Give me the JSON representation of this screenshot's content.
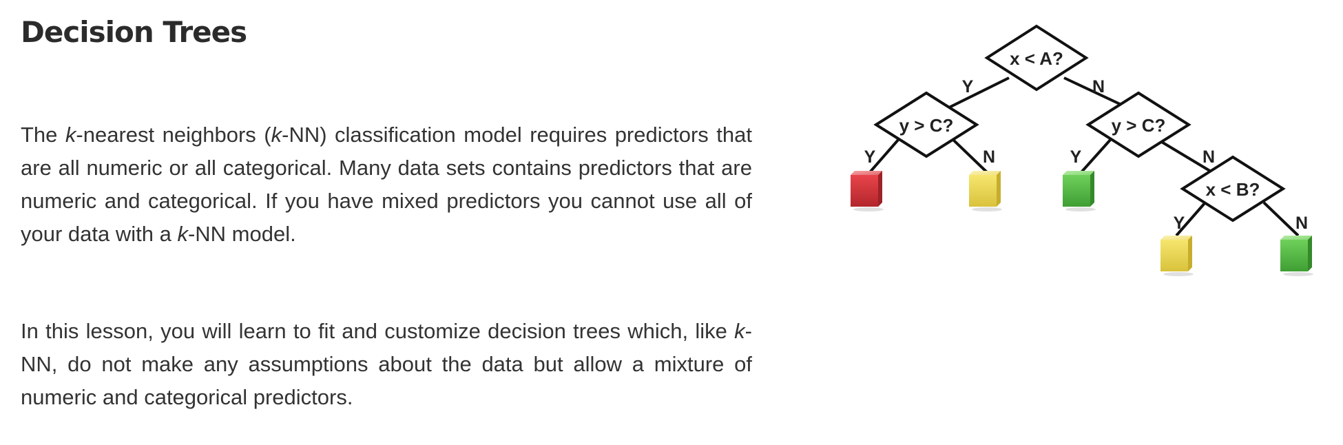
{
  "title": "Decision Trees",
  "paragraph1": {
    "s1": "The ",
    "k1": "k",
    "s2": "-nearest neighbors (",
    "k2": "k",
    "s3": "-NN) classification model requires predictors that are all numeric or all categorical. Many data sets contains predictors that are numeric and categorical. If you have mixed predictors you cannot use all of your data with a ",
    "k3": "k",
    "s4": "-NN model."
  },
  "paragraph2": {
    "s1": "In this lesson, you will learn to fit and customize decision trees which, like ",
    "k1": "k",
    "s2": "-NN, do not make any assumptions about the data but allow a mixture of numeric and categorical predictors."
  },
  "tree": {
    "nodes": {
      "root": "x < A?",
      "left": "y > C?",
      "right": "y > C?",
      "right_right": "x < B?"
    },
    "edge_labels": {
      "yes": "Y",
      "no": "N"
    },
    "leaf_colors": {
      "red": "#d9333a",
      "yellow": "#f1dc5a",
      "green": "#5cc24a"
    }
  }
}
